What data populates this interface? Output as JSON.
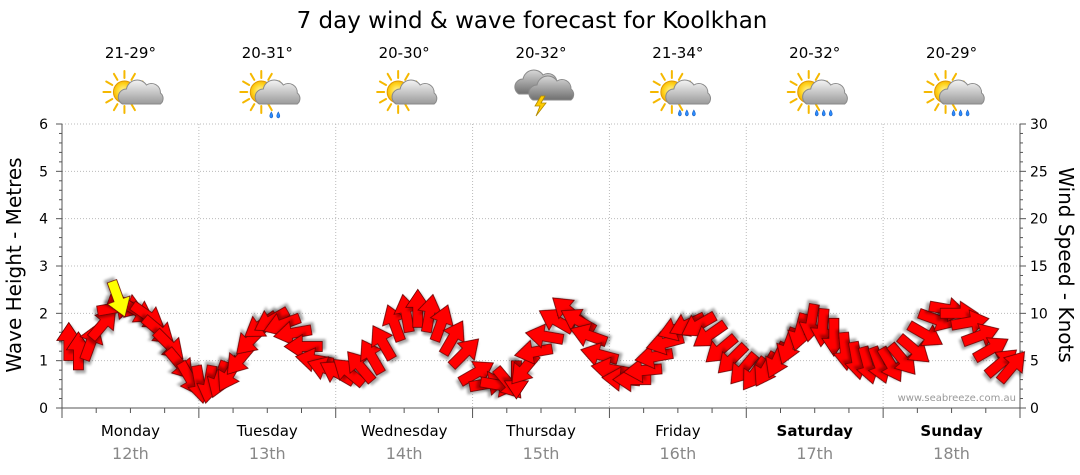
{
  "chart_title": "7 day wind & wave forecast for Koolkhan",
  "left_axis_label": "Wave Height - Metres",
  "right_axis_label": "Wind Speed - Knots",
  "credit": "www.seabreeze.com.au",
  "left_ticks": [
    "0",
    "1",
    "2",
    "3",
    "4",
    "5",
    "6"
  ],
  "right_ticks": [
    "0",
    "5",
    "10",
    "15",
    "20",
    "25",
    "30"
  ],
  "days": [
    {
      "name": "Monday",
      "date": "12th",
      "temp": "21-29°",
      "icon": "sun-cloud-icon",
      "bold": false
    },
    {
      "name": "Tuesday",
      "date": "13th",
      "temp": "20-31°",
      "icon": "sun-cloud-light-rain-icon",
      "bold": false
    },
    {
      "name": "Wednesday",
      "date": "14th",
      "temp": "20-30°",
      "icon": "sun-cloud-icon",
      "bold": false
    },
    {
      "name": "Thursday",
      "date": "15th",
      "temp": "20-32°",
      "icon": "storm-icon",
      "bold": false
    },
    {
      "name": "Friday",
      "date": "16th",
      "temp": "21-34°",
      "icon": "sun-cloud-rain-icon",
      "bold": false
    },
    {
      "name": "Saturday",
      "date": "17th",
      "temp": "20-32°",
      "icon": "sun-cloud-rain-icon",
      "bold": true
    },
    {
      "name": "Sunday",
      "date": "18th",
      "temp": "20-29°",
      "icon": "sun-cloud-rain-icon",
      "bold": true
    }
  ],
  "colors": {
    "wind_arrow": "#ff0000",
    "wave_arrow": "#ffff00",
    "arrow_outline": "#660000"
  },
  "chart_data": {
    "type": "line",
    "title": "7 day wind & wave forecast for Koolkhan",
    "ylabel_left": "Wave Height - Metres",
    "ylabel_right": "Wind Speed - Knots",
    "ylim_left": [
      0,
      6
    ],
    "ylim_right": [
      0,
      30
    ],
    "categories": [
      "Monday 12th",
      "Tuesday 13th",
      "Wednesday 14th",
      "Thursday 15th",
      "Friday 16th",
      "Saturday 17th",
      "Sunday 18th"
    ],
    "grid": true,
    "series": [
      {
        "name": "Wind Speed - Knots",
        "axis": "right",
        "x": [
          0.05,
          0.12,
          0.2,
          0.28,
          0.36,
          0.44,
          0.52,
          0.6,
          0.68,
          0.76,
          0.84,
          0.92,
          1.0,
          1.08,
          1.16,
          1.24,
          1.32,
          1.4,
          1.48,
          1.56,
          1.64,
          1.72,
          1.8,
          1.88,
          1.96,
          2.04,
          2.12,
          2.2,
          2.28,
          2.36,
          2.44,
          2.52,
          2.6,
          2.68,
          2.76,
          2.84,
          2.92,
          3.0,
          3.08,
          3.16,
          3.24,
          3.32,
          3.4,
          3.48,
          3.56,
          3.64,
          3.72,
          3.8,
          3.88,
          3.96,
          4.04,
          4.12,
          4.2,
          4.28,
          4.36,
          4.44,
          4.52,
          4.6,
          4.68,
          4.76,
          4.84,
          4.92,
          5.0,
          5.08,
          5.16,
          5.24,
          5.32,
          5.4,
          5.48,
          5.56,
          5.64,
          5.72,
          5.8,
          5.88,
          5.96,
          6.04,
          6.12,
          6.2,
          6.28,
          6.36,
          6.44,
          6.52,
          6.6,
          6.68,
          6.76,
          6.84,
          6.92
        ],
        "values": [
          6.5,
          5.5,
          6.5,
          8.5,
          10.5,
          11,
          10.5,
          10,
          8.5,
          7,
          5,
          3.5,
          3,
          3,
          3.5,
          4,
          5.5,
          7.5,
          9,
          9.5,
          9,
          8,
          6.5,
          5,
          4,
          3.5,
          3.5,
          4,
          5,
          6.5,
          8.5,
          9.5,
          10,
          9.5,
          8.5,
          7,
          5.5,
          3.5,
          2.5,
          2.5,
          3,
          3.5,
          4.5,
          6,
          7.5,
          9,
          10,
          9,
          7.5,
          5.5,
          4,
          3,
          3,
          4,
          5.5,
          7,
          8.5,
          9,
          9,
          8,
          6.5,
          5.5,
          4.5,
          4,
          4.5,
          5.5,
          7,
          8.5,
          9.5,
          9,
          8,
          6.5,
          5.5,
          5,
          5,
          5,
          5.5,
          6.5,
          8,
          9.5,
          10.5,
          10,
          9,
          7.5,
          6,
          4.5,
          4
        ],
        "direction_deg": [
          0,
          0,
          20,
          40,
          80,
          110,
          120,
          125,
          130,
          135,
          140,
          150,
          170,
          190,
          200,
          210,
          220,
          225,
          235,
          240,
          250,
          260,
          270,
          280,
          290,
          300,
          310,
          320,
          330,
          330,
          340,
          350,
          360,
          10,
          20,
          30,
          45,
          60,
          80,
          100,
          140,
          180,
          220,
          260,
          280,
          300,
          310,
          300,
          290,
          285,
          280,
          275,
          270,
          265,
          260,
          255,
          250,
          245,
          240,
          235,
          230,
          225,
          220,
          215,
          210,
          205,
          200,
          195,
          190,
          185,
          180,
          175,
          170,
          165,
          160,
          150,
          140,
          130,
          120,
          110,
          100,
          90,
          80,
          70,
          60,
          50,
          40
        ]
      },
      {
        "name": "Wave Height - Metres",
        "axis": "left",
        "x": [
          0.4
        ],
        "values": [
          2.4
        ],
        "direction_deg": [
          160
        ]
      }
    ]
  }
}
